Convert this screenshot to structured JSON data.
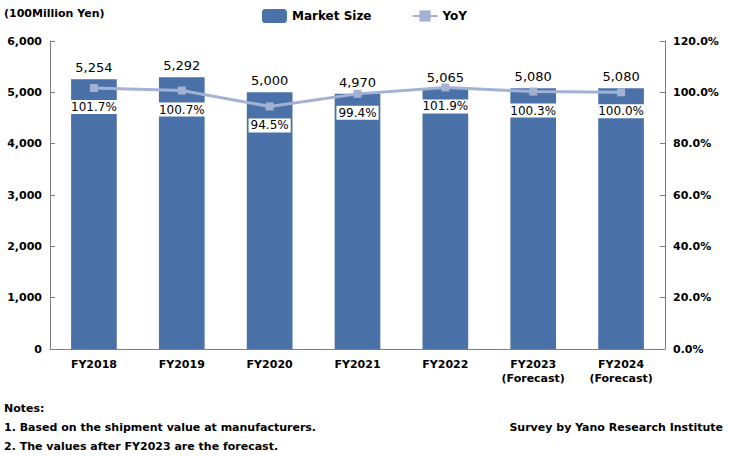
{
  "chart_data": {
    "type": "bar",
    "y_label": "(100Million Yen)",
    "categories": [
      "FY2018",
      "FY2019",
      "FY2020",
      "FY2021",
      "FY2022",
      "FY2023\n(Forecast)",
      "FY2024\n(Forecast)"
    ],
    "series": [
      {
        "name": "Market Size",
        "type": "bar",
        "color": "#4a72a8",
        "values": [
          5254,
          5292,
          5000,
          4970,
          5065,
          5080,
          5080
        ],
        "value_labels": [
          "5,254",
          "5,292",
          "5,000",
          "4,970",
          "5,065",
          "5,080",
          "5,080"
        ]
      },
      {
        "name": "YoY",
        "type": "line",
        "axis": "y2",
        "color": "#a3b1d3",
        "marker": "square",
        "values": [
          101.7,
          100.7,
          94.5,
          99.4,
          101.9,
          100.3,
          100.0
        ],
        "value_labels": [
          "101.7%",
          "100.7%",
          "94.5%",
          "99.4%",
          "101.9%",
          "100.3%",
          "100.0%"
        ]
      }
    ],
    "ylim": [
      0,
      6000
    ],
    "yticks": [
      0,
      {
        "value": 1000,
        "label": "1,000"
      },
      {
        "value": 2000,
        "label": "2,000"
      },
      {
        "value": 3000,
        "label": "3,000"
      },
      {
        "value": 4000,
        "label": "4,000"
      },
      {
        "value": 5000,
        "label": "5,000"
      },
      {
        "value": 6000,
        "label": "6,000"
      }
    ],
    "y2lim": [
      0,
      120
    ],
    "y2ticks": [
      {
        "value": 0,
        "label": "0.0%"
      },
      {
        "value": 20,
        "label": "20.0%"
      },
      {
        "value": 40,
        "label": "40.0%"
      },
      {
        "value": 60,
        "label": "60.0%"
      },
      {
        "value": 80,
        "label": "80.0%"
      },
      {
        "value": 100,
        "label": "100.0%"
      },
      {
        "value": 120,
        "label": "120.0%"
      }
    ],
    "grid": false,
    "legend": "top",
    "data_labels": true,
    "notes": [
      "Notes:",
      "1. Based on the shipment value at manufacturers.",
      "2. The values after FY2023 are the forecast."
    ],
    "source": "Survey by Yano Research Institute"
  }
}
